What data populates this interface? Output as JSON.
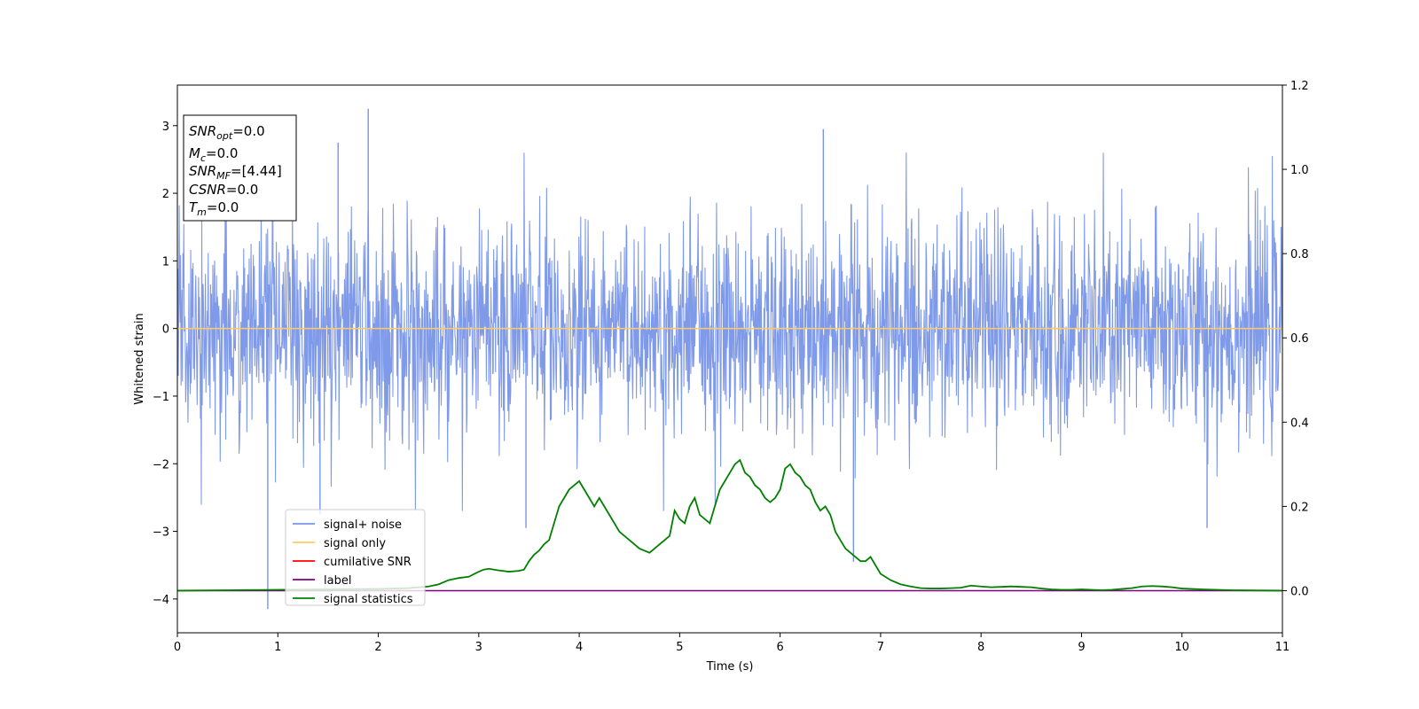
{
  "chart_data": {
    "type": "line",
    "title": "",
    "xlabel": "Time (s)",
    "ylabel": "Whitened strain",
    "y2label": "",
    "xlim": [
      0,
      11
    ],
    "ylim": [
      -4.5,
      3.6
    ],
    "y2lim": [
      -0.1,
      1.2
    ],
    "xticks": [
      0,
      1,
      2,
      3,
      4,
      5,
      6,
      7,
      8,
      9,
      10,
      11
    ],
    "yticks": [
      -4,
      -3,
      -2,
      -1,
      0,
      1,
      2,
      3
    ],
    "y2ticks": [
      0.0,
      0.2,
      0.4,
      0.6,
      0.8,
      1.0,
      1.2
    ],
    "y2tick_labels": [
      "0.0",
      "0.2",
      "0.4",
      "0.6",
      "0.8",
      "1.0",
      "1.2"
    ],
    "grid": false,
    "legend_position": "lower-left",
    "colors": {
      "signal_noise": "#7995e9",
      "signal_only": "#ffc966",
      "cumulative_snr": "#ff0000",
      "label": "#800080",
      "signal_statistics": "#008000"
    },
    "series": [
      {
        "name": "signal+ noise",
        "axis": "left",
        "description_values": "whitened noise, approx. Gaussian, sampled densely over 0-11 s",
        "peaks": [
          {
            "x": 0.9,
            "y": -4.15
          },
          {
            "x": 1.9,
            "y": 3.25
          },
          {
            "x": 1.6,
            "y": 2.75
          },
          {
            "x": 6.43,
            "y": 2.95
          },
          {
            "x": 1.42,
            "y": -2.75
          },
          {
            "x": 3.47,
            "y": -2.95
          },
          {
            "x": 6.73,
            "y": -3.45
          },
          {
            "x": 10.25,
            "y": -2.95
          }
        ]
      },
      {
        "name": "signal only",
        "axis": "left",
        "x": [
          0,
          11
        ],
        "y": [
          0,
          0
        ]
      },
      {
        "name": "cumilative SNR",
        "axis": "left",
        "x": [],
        "y": []
      },
      {
        "name": "label",
        "axis": "right",
        "x": [
          0,
          11
        ],
        "y": [
          0,
          0
        ]
      },
      {
        "name": "signal statistics",
        "axis": "right",
        "x": [
          0,
          0.5,
          1.0,
          1.5,
          2.0,
          2.3,
          2.5,
          2.6,
          2.7,
          2.8,
          2.9,
          3.0,
          3.05,
          3.1,
          3.2,
          3.3,
          3.4,
          3.45,
          3.5,
          3.55,
          3.6,
          3.65,
          3.7,
          3.75,
          3.8,
          3.85,
          3.9,
          3.95,
          4.0,
          4.05,
          4.1,
          4.15,
          4.2,
          4.3,
          4.4,
          4.5,
          4.6,
          4.7,
          4.75,
          4.8,
          4.85,
          4.9,
          4.95,
          5.0,
          5.05,
          5.1,
          5.15,
          5.2,
          5.3,
          5.4,
          5.45,
          5.5,
          5.55,
          5.6,
          5.65,
          5.7,
          5.75,
          5.8,
          5.85,
          5.9,
          5.95,
          6.0,
          6.05,
          6.1,
          6.15,
          6.2,
          6.25,
          6.3,
          6.35,
          6.4,
          6.45,
          6.5,
          6.55,
          6.6,
          6.65,
          6.7,
          6.75,
          6.8,
          6.85,
          6.9,
          7.0,
          7.1,
          7.2,
          7.3,
          7.4,
          7.5,
          7.6,
          7.7,
          7.8,
          7.9,
          8.0,
          8.1,
          8.2,
          8.3,
          8.4,
          8.5,
          8.6,
          8.7,
          8.8,
          8.9,
          9.0,
          9.1,
          9.2,
          9.3,
          9.4,
          9.5,
          9.6,
          9.7,
          9.8,
          9.9,
          10.0,
          10.2,
          10.5,
          11.0
        ],
        "y": [
          0.0,
          0.001,
          0.002,
          0.003,
          0.004,
          0.006,
          0.01,
          0.015,
          0.025,
          0.03,
          0.033,
          0.045,
          0.05,
          0.052,
          0.048,
          0.045,
          0.047,
          0.05,
          0.07,
          0.085,
          0.095,
          0.11,
          0.12,
          0.16,
          0.2,
          0.22,
          0.24,
          0.25,
          0.26,
          0.24,
          0.22,
          0.2,
          0.22,
          0.18,
          0.14,
          0.12,
          0.1,
          0.09,
          0.1,
          0.11,
          0.12,
          0.13,
          0.19,
          0.17,
          0.16,
          0.2,
          0.22,
          0.18,
          0.16,
          0.24,
          0.26,
          0.28,
          0.3,
          0.31,
          0.28,
          0.27,
          0.25,
          0.24,
          0.22,
          0.21,
          0.22,
          0.24,
          0.29,
          0.3,
          0.28,
          0.27,
          0.25,
          0.24,
          0.21,
          0.19,
          0.2,
          0.18,
          0.14,
          0.12,
          0.1,
          0.09,
          0.08,
          0.07,
          0.07,
          0.08,
          0.04,
          0.025,
          0.015,
          0.01,
          0.006,
          0.005,
          0.005,
          0.006,
          0.007,
          0.012,
          0.01,
          0.008,
          0.009,
          0.01,
          0.009,
          0.008,
          0.005,
          0.003,
          0.002,
          0.002,
          0.003,
          0.002,
          0.001,
          0.002,
          0.004,
          0.006,
          0.01,
          0.011,
          0.01,
          0.008,
          0.005,
          0.003,
          0.001,
          0.0
        ]
      }
    ],
    "annotation_box": {
      "lines": [
        {
          "name": "SNR",
          "sub": "opt",
          "value": "=0.0"
        },
        {
          "name": "M",
          "sub": "c",
          "value": "=0.0"
        },
        {
          "name": "SNR",
          "sub": "MF",
          "value": "=[4.44]"
        },
        {
          "name": "CSNR",
          "sub": "",
          "value": "=0.0"
        },
        {
          "name": "T",
          "sub": "m",
          "value": "=0.0"
        }
      ]
    },
    "legend": [
      {
        "label": "signal+ noise",
        "color": "#7995e9"
      },
      {
        "label": "signal only",
        "color": "#ffc966"
      },
      {
        "label": "cumilative SNR",
        "color": "#ff0000"
      },
      {
        "label": "label",
        "color": "#800080"
      },
      {
        "label": "signal statistics",
        "color": "#008000"
      }
    ]
  }
}
